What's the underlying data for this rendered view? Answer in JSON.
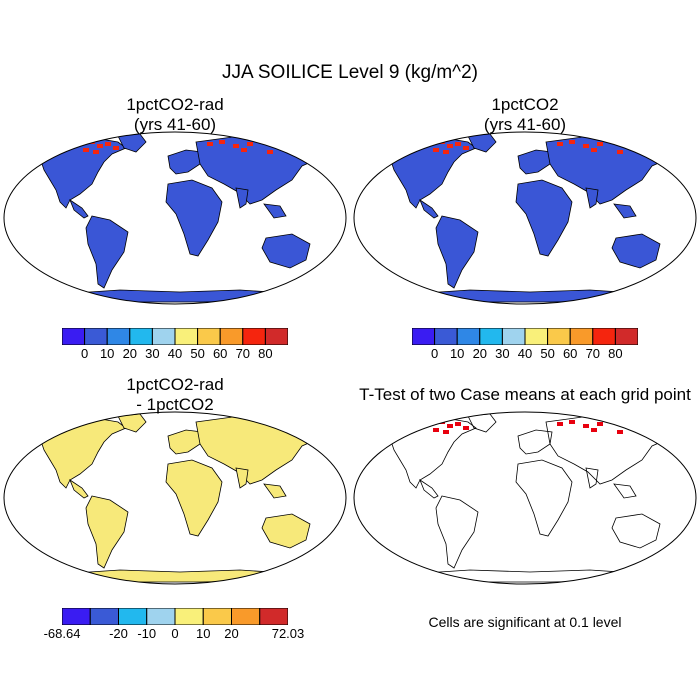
{
  "title": "JJA SOILICE Level 9 (kg/m^2)",
  "panels": [
    {
      "title_line1": "1pctCO2-rad",
      "title_line2": "(yrs 41-60)"
    },
    {
      "title_line1": "1pctCO2",
      "title_line2": "(yrs 41-60)"
    },
    {
      "title_line1": "1pctCO2-rad",
      "title_line2": "- 1pctCO2"
    },
    {
      "title_line1": "T-Test of two Case means at each grid point",
      "note": "Cells are significant at 0.1 level"
    }
  ],
  "colorbar_abs": {
    "colors": [
      "#3a1cf2",
      "#3a5ad6",
      "#2f87e6",
      "#22b8ee",
      "#9fd3ee",
      "#f9f07a",
      "#fac94a",
      "#f99a2a",
      "#f5250e",
      "#d12a2a"
    ],
    "labels": [
      "0",
      "10",
      "20",
      "30",
      "40",
      "50",
      "60",
      "70",
      "80"
    ]
  },
  "colorbar_diff": {
    "colors": [
      "#3a1cf2",
      "#3a5ad6",
      "#22b8ee",
      "#9fd3ee",
      "#f9f07a",
      "#fac94a",
      "#f99a2a",
      "#d12a2a"
    ],
    "labels": [
      "-68.64",
      "-20",
      "-10",
      "0",
      "10",
      "20",
      "72.03"
    ]
  },
  "fill_colors": {
    "land_abs": "#3a56d6",
    "land_diff": "#f7e97a",
    "arctic_hot": "#f5250e",
    "significant": "#e8000e"
  }
}
